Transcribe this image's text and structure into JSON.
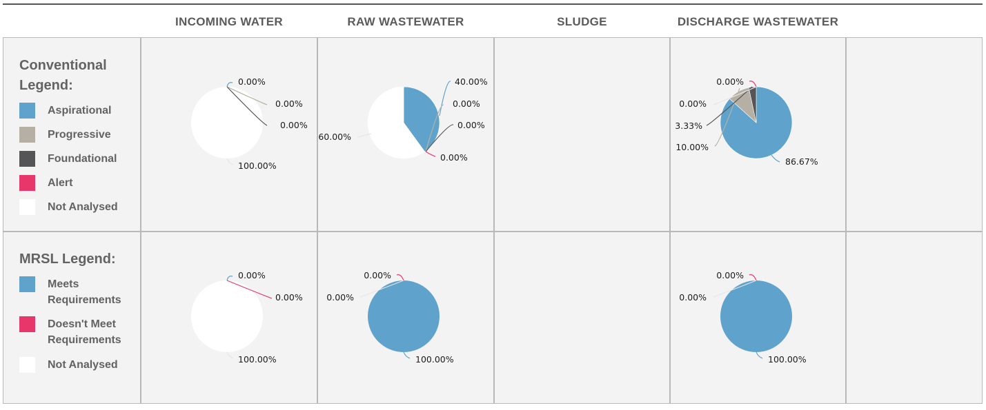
{
  "columns": {
    "incoming": "INCOMING WATER",
    "raw": "RAW WASTEWATER",
    "sludge": "SLUDGE",
    "discharge": "DISCHARGE WASTEWATER"
  },
  "conventional_legend": {
    "title_line1": "Conventional",
    "title_line2": "Legend:",
    "items": [
      {
        "label": "Aspirational",
        "color": "#5fa3cc"
      },
      {
        "label": "Progressive",
        "color": "#b5b0a3"
      },
      {
        "label": "Foundational",
        "color": "#555558"
      },
      {
        "label": "Alert",
        "color": "#e8366a"
      },
      {
        "label": "Not Analysed",
        "color": "#ffffff"
      }
    ]
  },
  "mrsl_legend": {
    "title": "MRSL Legend:",
    "items": [
      {
        "label_line1": "Meets",
        "label_line2": "Requirements",
        "color": "#5fa3cc"
      },
      {
        "label_line1": "Doesn't Meet",
        "label_line2": "Requirements",
        "color": "#e8366a"
      },
      {
        "label_line1": "Not Analysed",
        "label_line2": "",
        "color": "#ffffff"
      }
    ]
  },
  "chart_data": [
    {
      "type": "pie",
      "row": "Conventional",
      "column": "INCOMING WATER",
      "categories": [
        "Aspirational",
        "Progressive",
        "Foundational",
        "Alert",
        "Not Analysed"
      ],
      "values": [
        0,
        0,
        0,
        0,
        100
      ],
      "labels": [
        "0.00%",
        "0.00%",
        "0.00%",
        "",
        "100.00%"
      ]
    },
    {
      "type": "pie",
      "row": "Conventional",
      "column": "RAW WASTEWATER",
      "categories": [
        "Aspirational",
        "Progressive",
        "Foundational",
        "Alert",
        "Not Analysed"
      ],
      "values": [
        40,
        0,
        0,
        0,
        60
      ],
      "labels": [
        "40.00%",
        "0.00%",
        "0.00%",
        "0.00%",
        "60.00%"
      ]
    },
    {
      "type": "pie",
      "row": "Conventional",
      "column": "DISCHARGE WASTEWATER",
      "categories": [
        "Aspirational",
        "Progressive",
        "Foundational",
        "Alert",
        "Not Analysed"
      ],
      "values": [
        86.67,
        10,
        3.33,
        0,
        0
      ],
      "labels": [
        "86.67%",
        "10.00%",
        "3.33%",
        "0.00%",
        "0.00%"
      ]
    },
    {
      "type": "pie",
      "row": "MRSL",
      "column": "INCOMING WATER",
      "categories": [
        "Meets Requirements",
        "Doesn't Meet Requirements",
        "Not Analysed"
      ],
      "values": [
        0,
        0,
        100
      ],
      "labels": [
        "0.00%",
        "0.00%",
        "100.00%"
      ]
    },
    {
      "type": "pie",
      "row": "MRSL",
      "column": "RAW WASTEWATER",
      "categories": [
        "Meets Requirements",
        "Doesn't Meet Requirements",
        "Not Analysed"
      ],
      "values": [
        100,
        0,
        0
      ],
      "labels": [
        "100.00%",
        "0.00%",
        "0.00%"
      ]
    },
    {
      "type": "pie",
      "row": "MRSL",
      "column": "DISCHARGE WASTEWATER",
      "categories": [
        "Meets Requirements",
        "Doesn't Meet Requirements",
        "Not Analysed"
      ],
      "values": [
        100,
        0,
        0
      ],
      "labels": [
        "100.00%",
        "0.00%",
        "0.00%"
      ]
    }
  ]
}
